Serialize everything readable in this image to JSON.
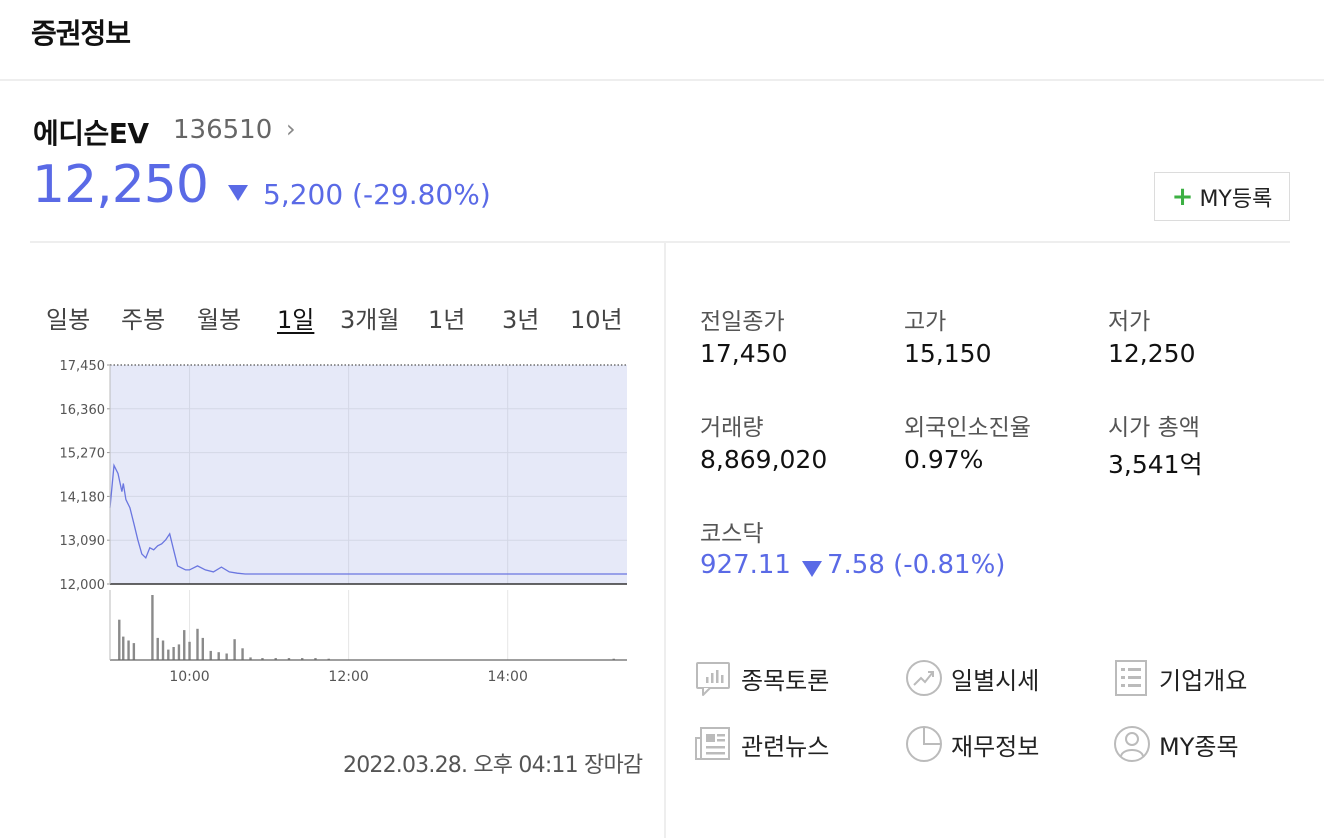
{
  "header": {
    "title": "증권정보"
  },
  "stock": {
    "name": "에디슨EV",
    "code": "136510",
    "chevron": "›",
    "price": "12,250",
    "change": "5,200 (-29.80%)",
    "my_plus": "+",
    "my_button": "MY등록",
    "colors": {
      "down": "#5a6ae6",
      "plus": "#3cb043"
    }
  },
  "periods": [
    {
      "label": "일봉",
      "active": false
    },
    {
      "label": "주봉",
      "active": false
    },
    {
      "label": "월봉",
      "active": false
    },
    {
      "label": "1일",
      "active": true
    },
    {
      "label": "3개월",
      "active": false
    },
    {
      "label": "1년",
      "active": false
    },
    {
      "label": "3년",
      "active": false
    },
    {
      "label": "10년",
      "active": false
    }
  ],
  "chart_data": {
    "type": "area",
    "y_ticks": [
      "17,450",
      "16,360",
      "15,270",
      "14,180",
      "13,090",
      "12,000"
    ],
    "x_ticks": [
      "10:00",
      "12:00",
      "14:00"
    ],
    "ylim": [
      12000,
      17450
    ],
    "reference_line": 17450,
    "price_series": [
      [
        "09:00",
        13900
      ],
      [
        "09:03",
        14950
      ],
      [
        "09:06",
        14750
      ],
      [
        "09:09",
        14300
      ],
      [
        "09:10",
        14500
      ],
      [
        "09:12",
        14100
      ],
      [
        "09:15",
        13900
      ],
      [
        "09:18",
        13500
      ],
      [
        "09:21",
        13100
      ],
      [
        "09:24",
        12750
      ],
      [
        "09:27",
        12650
      ],
      [
        "09:30",
        12900
      ],
      [
        "09:33",
        12850
      ],
      [
        "09:36",
        12950
      ],
      [
        "09:39",
        13000
      ],
      [
        "09:42",
        13100
      ],
      [
        "09:45",
        13250
      ],
      [
        "09:48",
        12850
      ],
      [
        "09:51",
        12450
      ],
      [
        "09:54",
        12400
      ],
      [
        "09:57",
        12350
      ],
      [
        "10:00",
        12350
      ],
      [
        "10:06",
        12450
      ],
      [
        "10:12",
        12350
      ],
      [
        "10:18",
        12300
      ],
      [
        "10:24",
        12420
      ],
      [
        "10:30",
        12300
      ],
      [
        "10:36",
        12270
      ],
      [
        "10:42",
        12250
      ],
      [
        "15:30",
        12250
      ]
    ],
    "volume_series": [
      [
        "09:07",
        0.62
      ],
      [
        "09:10",
        0.36
      ],
      [
        "09:14",
        0.3
      ],
      [
        "09:18",
        0.26
      ],
      [
        "09:32",
        1.0
      ],
      [
        "09:36",
        0.34
      ],
      [
        "09:40",
        0.3
      ],
      [
        "09:44",
        0.16
      ],
      [
        "09:48",
        0.2
      ],
      [
        "09:52",
        0.24
      ],
      [
        "09:56",
        0.46
      ],
      [
        "10:00",
        0.28
      ],
      [
        "10:06",
        0.48
      ],
      [
        "10:10",
        0.34
      ],
      [
        "10:16",
        0.14
      ],
      [
        "10:22",
        0.12
      ],
      [
        "10:28",
        0.1
      ],
      [
        "10:34",
        0.32
      ],
      [
        "10:40",
        0.18
      ],
      [
        "10:46",
        0.04
      ],
      [
        "10:55",
        0.03
      ],
      [
        "11:05",
        0.03
      ],
      [
        "11:15",
        0.03
      ],
      [
        "11:25",
        0.03
      ],
      [
        "11:35",
        0.03
      ],
      [
        "11:45",
        0.02
      ],
      [
        "15:20",
        0.02
      ]
    ],
    "colors": {
      "line": "#6a76e0",
      "fill": "#e6e9f8",
      "volume": "#8a8a8a"
    }
  },
  "timestamp": "2022.03.28. 오후 04:11 장마감",
  "info": [
    {
      "label": "전일종가",
      "value": "17,450"
    },
    {
      "label": "고가",
      "value": "15,150"
    },
    {
      "label": "저가",
      "value": "12,250"
    },
    {
      "label": "거래량",
      "value": "8,869,020"
    },
    {
      "label": "외국인소진율",
      "value": "0.97%"
    },
    {
      "label": "시가 총액",
      "value": "3,541억"
    }
  ],
  "kosdaq": {
    "label": "코스닥",
    "value": "927.11",
    "change": "7.58 (-0.81%)"
  },
  "links": [
    {
      "label": "종목토론",
      "icon": "discussion-icon"
    },
    {
      "label": "일별시세",
      "icon": "trend-icon"
    },
    {
      "label": "기업개요",
      "icon": "list-icon"
    },
    {
      "label": "관련뉴스",
      "icon": "news-icon"
    },
    {
      "label": "재무정보",
      "icon": "pie-icon"
    },
    {
      "label": "MY종목",
      "icon": "user-icon"
    }
  ]
}
